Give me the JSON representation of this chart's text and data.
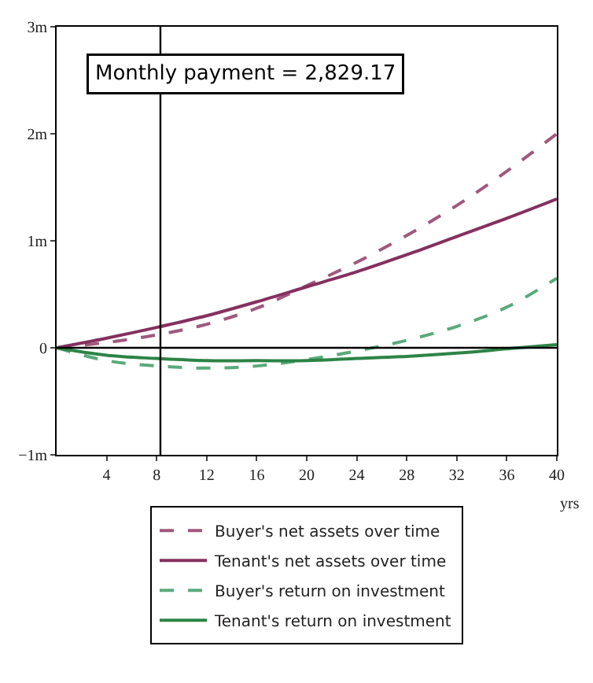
{
  "chart_data": {
    "type": "line",
    "x": [
      0,
      4,
      8,
      12,
      16,
      20,
      24,
      28,
      32,
      36,
      40
    ],
    "series": [
      {
        "name": "Buyer's net assets over time",
        "color": "#a0587d",
        "line_style": "dashed",
        "values": [
          0,
          0.05,
          0.12,
          0.22,
          0.37,
          0.58,
          0.8,
          1.05,
          1.33,
          1.65,
          2.0
        ]
      },
      {
        "name": "Tenant's net assets over time",
        "color": "#85305f",
        "line_style": "solid",
        "values": [
          0,
          0.09,
          0.19,
          0.3,
          0.43,
          0.57,
          0.71,
          0.87,
          1.04,
          1.21,
          1.39
        ]
      },
      {
        "name": "Buyer's return on investment",
        "color": "#5aaa7c",
        "line_style": "dashed",
        "values": [
          0,
          -0.12,
          -0.17,
          -0.19,
          -0.17,
          -0.11,
          -0.03,
          0.07,
          0.2,
          0.38,
          0.65
        ]
      },
      {
        "name": "Tenant's return on investment",
        "color": "#2c8446",
        "line_style": "solid",
        "values": [
          0,
          -0.07,
          -0.1,
          -0.12,
          -0.12,
          -0.12,
          -0.1,
          -0.08,
          -0.05,
          -0.01,
          0.03
        ]
      }
    ],
    "xlabel": "yrs",
    "xlim": [
      0,
      40
    ],
    "xticks": [
      4,
      8,
      12,
      16,
      20,
      24,
      28,
      32,
      36,
      40
    ],
    "ylim": [
      -1,
      3
    ],
    "yticks": [
      {
        "value": -1,
        "label": "−1m"
      },
      {
        "value": 0,
        "label": "0"
      },
      {
        "value": 1,
        "label": "1m"
      },
      {
        "value": 2,
        "label": "2m"
      },
      {
        "value": 3,
        "label": "3m"
      }
    ],
    "ref_lines": [
      {
        "axis": "y",
        "value": 0,
        "color": "#000000"
      },
      {
        "axis": "x",
        "value": 8.3,
        "color": "#000000"
      }
    ],
    "annotations": [
      "Monthly payment = 2,829.17"
    ],
    "grid": false,
    "legend": "bottom",
    "marker": "none"
  }
}
